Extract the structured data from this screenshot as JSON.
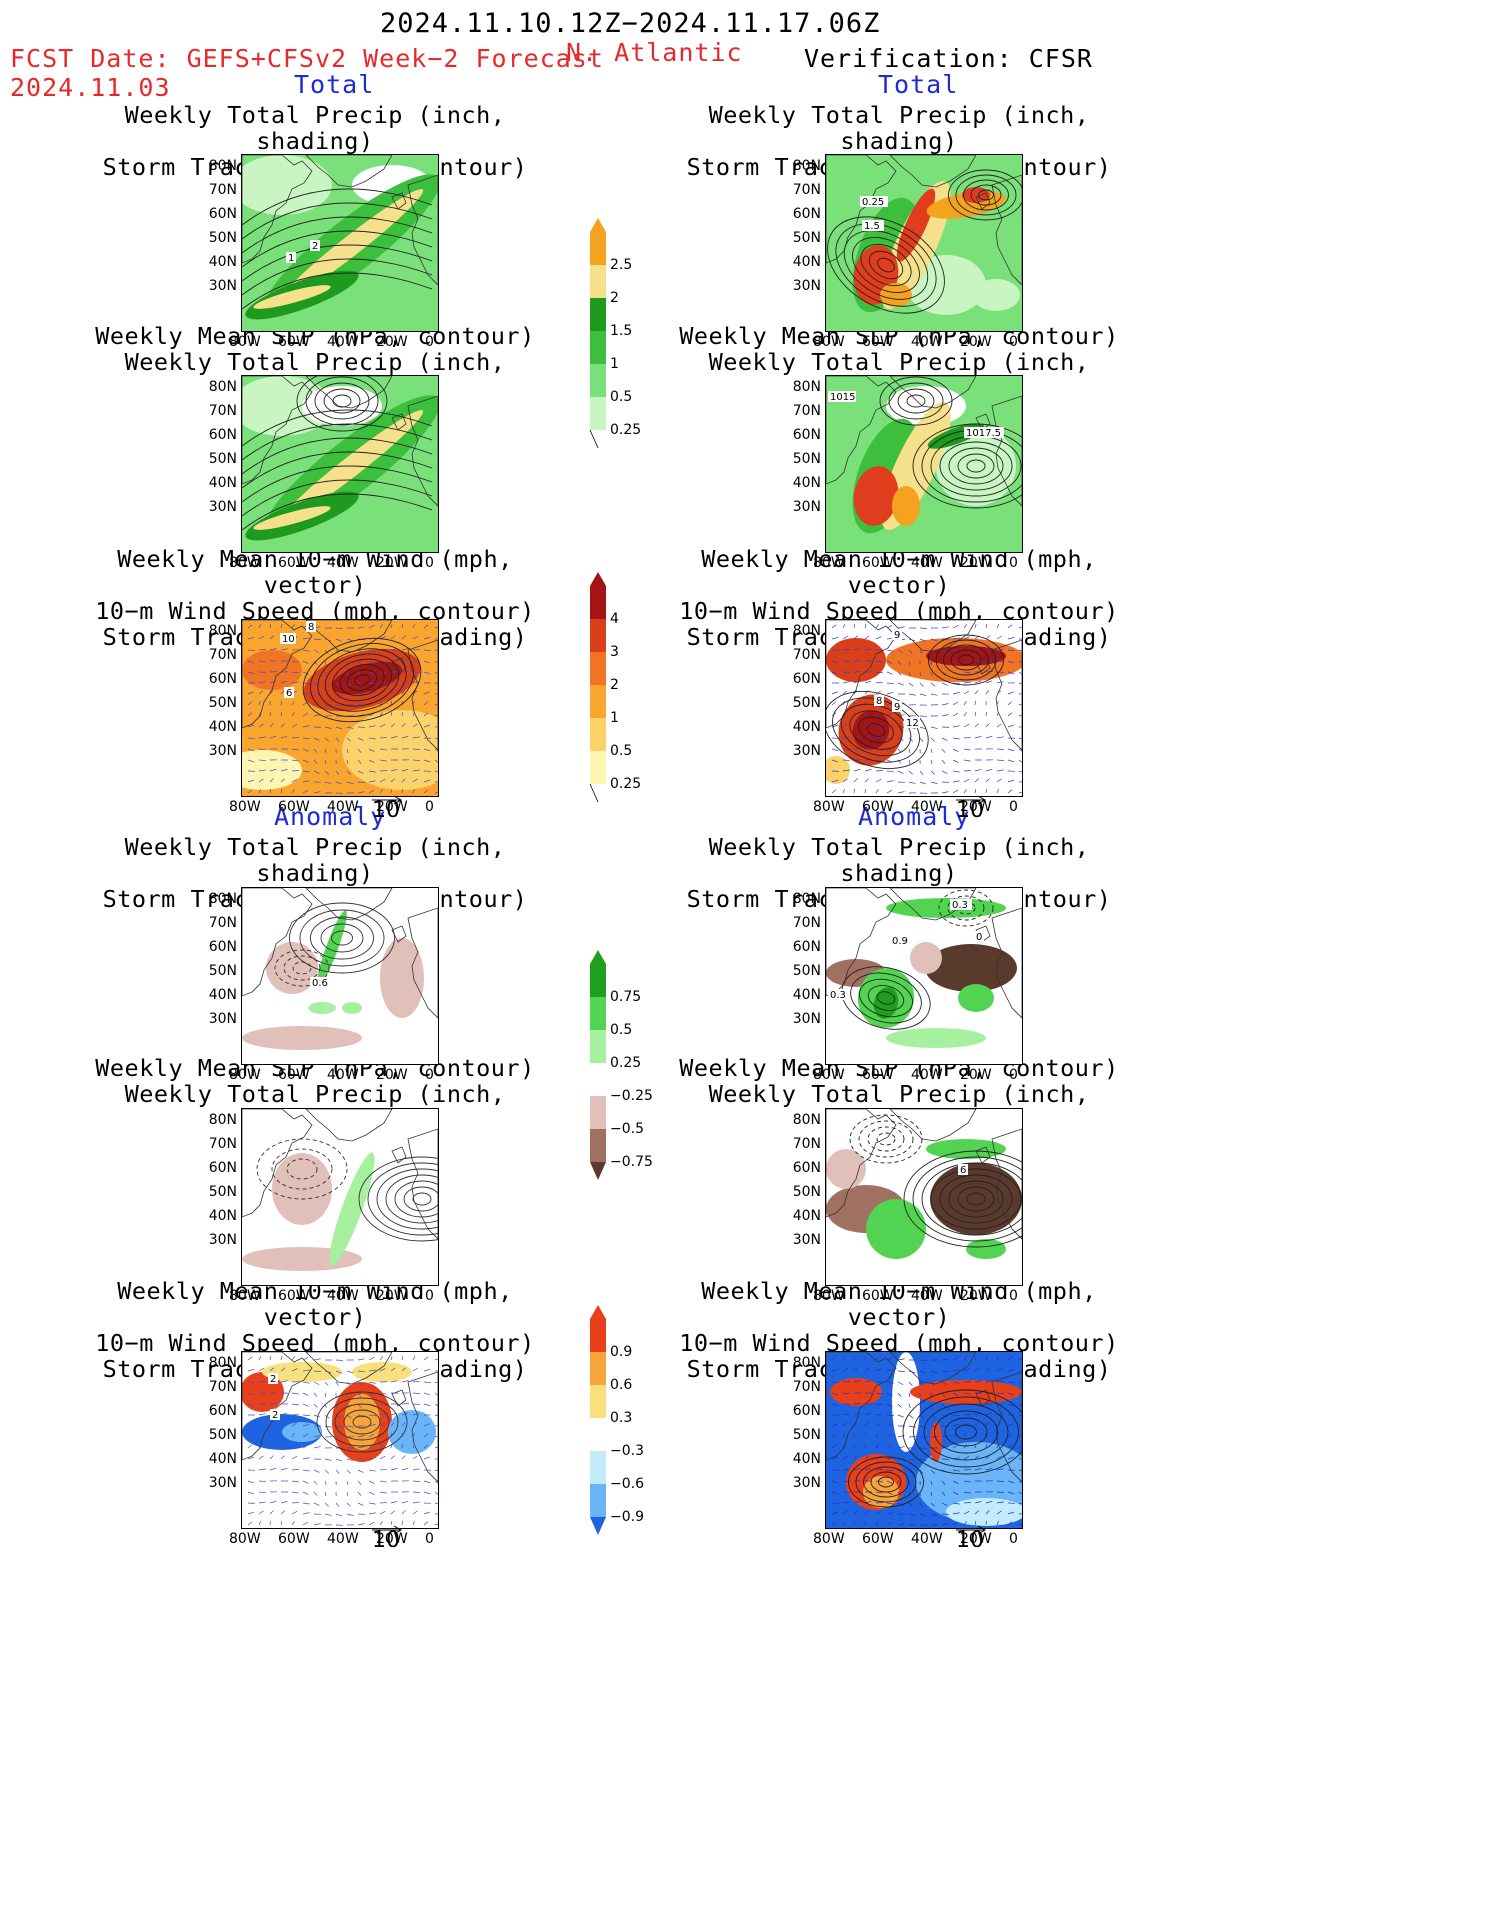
{
  "header": {
    "date_range": "2024.11.10.12Z−2024.11.17.06Z",
    "fcst_label": "FCST Date: GEFS+CFSv2 Week−2 Forecast",
    "fcst_date": "2024.11.03",
    "region": "N. Atlantic",
    "verification": "Verification: CFSR"
  },
  "sections": {
    "total": "Total",
    "anomaly": "Anomaly"
  },
  "titles": {
    "precip_track": [
      "Weekly Total Precip (inch, shading)",
      "Storm Track Density (contour)"
    ],
    "slp_precip": [
      "Weekly Mean SLP (hPa, contour)",
      "Weekly Total Precip (inch, shading)"
    ],
    "wind_track": [
      "Weekly Mean 10−m Wind (mph, vector)",
      "10−m Wind Speed (mph, contour)",
      "Storm Track Density (shading)"
    ]
  },
  "axes": {
    "lat": [
      "80N",
      "70N",
      "60N",
      "50N",
      "40N",
      "30N"
    ],
    "lon": [
      "80W",
      "60W",
      "40W",
      "20W",
      "0"
    ]
  },
  "vector_ref": "10",
  "colorbars": {
    "precip_total": [
      "2.5",
      "2",
      "1.5",
      "1",
      "0.5",
      "0.25"
    ],
    "track_total": [
      "4",
      "3",
      "2",
      "1",
      "0.5",
      "0.25"
    ],
    "precip_anom": [
      "0.75",
      "0.5",
      "0.25",
      "−0.25",
      "−0.5",
      "−0.75"
    ],
    "track_anom": [
      "0.9",
      "0.6",
      "0.3",
      "−0.3",
      "−0.6",
      "−0.9"
    ]
  },
  "colors": {
    "red_text": "#e8292b",
    "blue_text": "#1c2bd9",
    "precip_scale": [
      "#c9f5c2",
      "#7ae07a",
      "#3cbf3c",
      "#1e9a1e",
      "#f5e08c",
      "#f5a31e",
      "#e03c1e"
    ],
    "track_scale": [
      "#fdf6b0",
      "#fcd36a",
      "#f9a52e",
      "#f07422",
      "#d9401a",
      "#a51414"
    ],
    "anom_precip_scale": [
      "#5b3a2e",
      "#a07060",
      "#e0c0b8",
      "#a6f0a0",
      "#52d452",
      "#1ea01e"
    ],
    "anom_track_scale": [
      "#1e64e0",
      "#6ab4f8",
      "#c2ecfa",
      "#f8e07c",
      "#f7a53a",
      "#e8401a"
    ]
  },
  "map_labels": {
    "f1": [
      "1",
      "2"
    ],
    "o1": [
      "0.25",
      "1.5"
    ],
    "o2": [
      "1015",
      "1017.5"
    ],
    "f3": [
      "8",
      "10",
      "6"
    ],
    "o3": [
      "9",
      "8",
      "9",
      "12"
    ],
    "f4": [
      "0.6"
    ],
    "o4": [
      "0.3",
      "0.9",
      "0.3",
      "0"
    ],
    "o5": [
      "6"
    ],
    "f6": [
      "2",
      "2"
    ]
  }
}
